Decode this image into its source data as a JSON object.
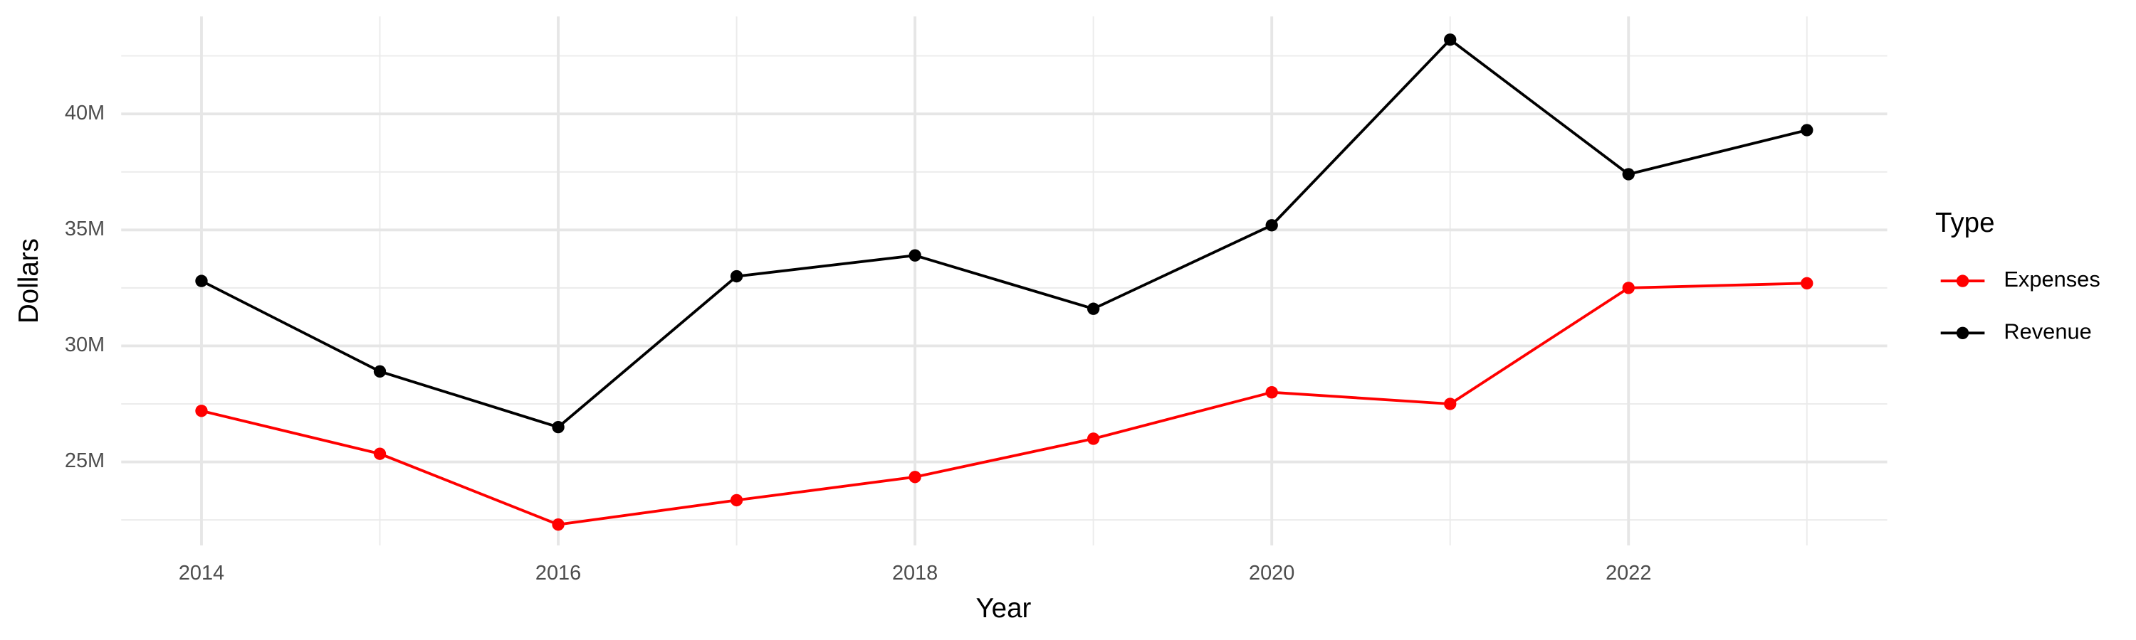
{
  "chart_data": {
    "type": "line",
    "x_label": "Year",
    "y_label": "Dollars",
    "legend_title": "Type",
    "legend": "right",
    "x": [
      2014,
      2015,
      2016,
      2017,
      2018,
      2019,
      2020,
      2021,
      2022,
      2023
    ],
    "series": [
      {
        "name": "Expenses",
        "color": "#ff0000",
        "values": [
          27200000,
          25350000,
          22300000,
          23350000,
          24350000,
          26000000,
          28000000,
          27500000,
          32500000,
          32700000
        ]
      },
      {
        "name": "Revenue",
        "color": "#000000",
        "values": [
          32800000,
          28900000,
          26500000,
          33000000,
          33900000,
          31600000,
          35200000,
          43200000,
          37400000,
          39300000
        ]
      }
    ],
    "xlim": [
      2013.55,
      2023.45
    ],
    "xticks": [
      2014,
      2016,
      2018,
      2020,
      2022
    ],
    "x_minor": [
      2015,
      2017,
      2019,
      2021,
      2023
    ],
    "ylim": [
      21400000,
      44200000
    ],
    "yticks": [
      {
        "value": 25000000,
        "label": "25M"
      },
      {
        "value": 30000000,
        "label": "30M"
      },
      {
        "value": 35000000,
        "label": "35M"
      },
      {
        "value": 40000000,
        "label": "40M"
      }
    ],
    "y_minor": [
      22500000,
      27500000,
      32500000,
      37500000,
      42500000
    ],
    "grid": true
  }
}
